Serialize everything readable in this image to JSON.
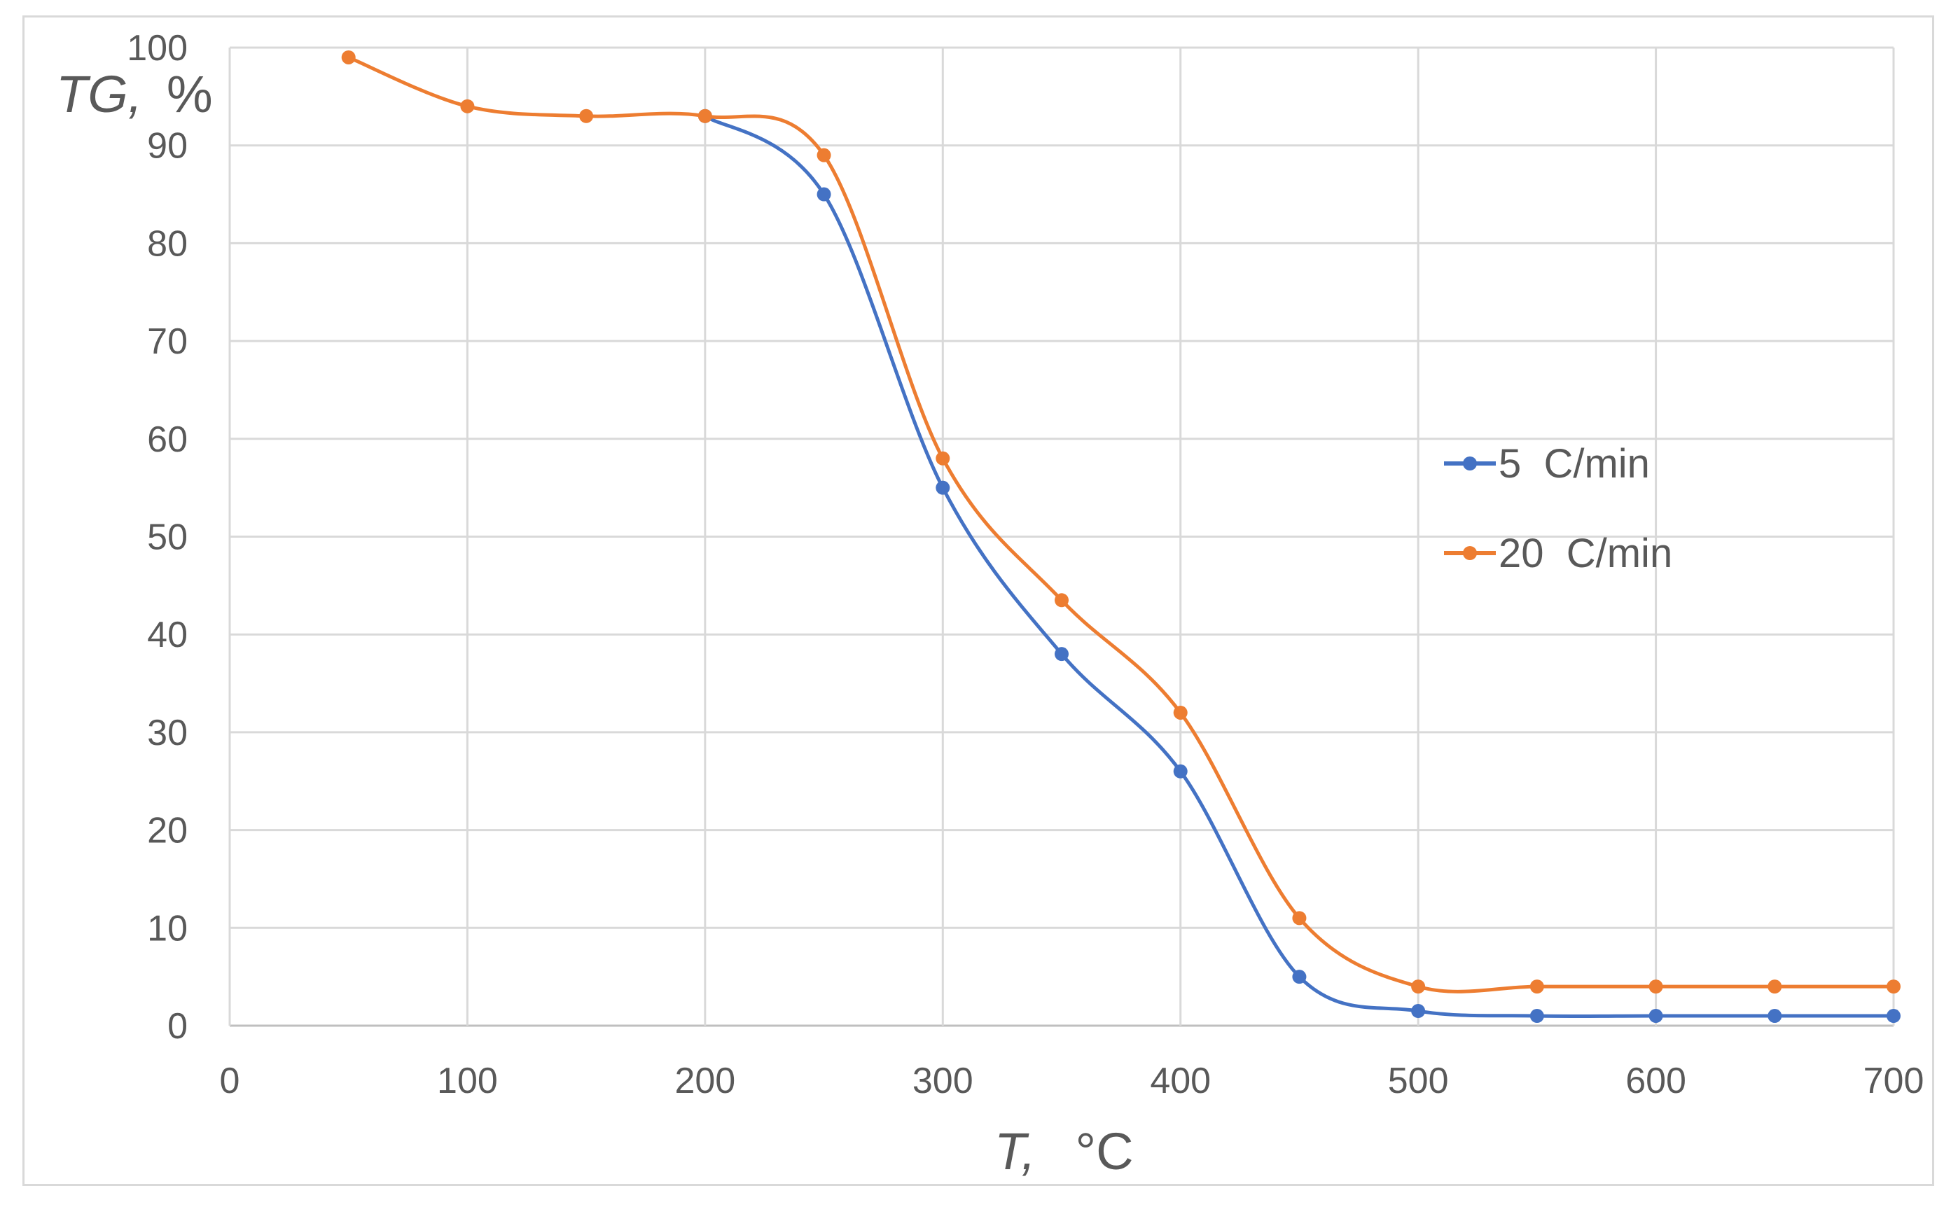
{
  "chart_data": {
    "type": "line",
    "title": "",
    "xlabel_var": "T,",
    "xlabel_unit": "°C",
    "ylabel_var": "TG,",
    "ylabel_unit": "%",
    "xlim": [
      0,
      700
    ],
    "ylim": [
      0,
      100
    ],
    "x_ticks": [
      "0",
      "100",
      "200",
      "300",
      "400",
      "500",
      "600",
      "700"
    ],
    "y_ticks": [
      "0",
      "10",
      "20",
      "30",
      "40",
      "50",
      "60",
      "70",
      "80",
      "90",
      "100"
    ],
    "grid": true,
    "legend_position": "right",
    "series": [
      {
        "name": "5  C/min",
        "color": "#4472c4",
        "x": [
          200,
          250,
          300,
          350,
          400,
          450,
          500,
          550,
          600,
          650,
          700
        ],
        "y": [
          93,
          85,
          55,
          38,
          26,
          5,
          1.5,
          1,
          1,
          1,
          1
        ]
      },
      {
        "name": "20  C/min",
        "color": "#ed7d31",
        "x": [
          50,
          100,
          150,
          200,
          250,
          300,
          350,
          400,
          450,
          500,
          550,
          600,
          650,
          700
        ],
        "y": [
          99,
          94,
          93,
          93,
          89,
          58,
          43.5,
          32,
          11,
          4,
          4,
          4,
          4,
          4
        ]
      }
    ]
  }
}
